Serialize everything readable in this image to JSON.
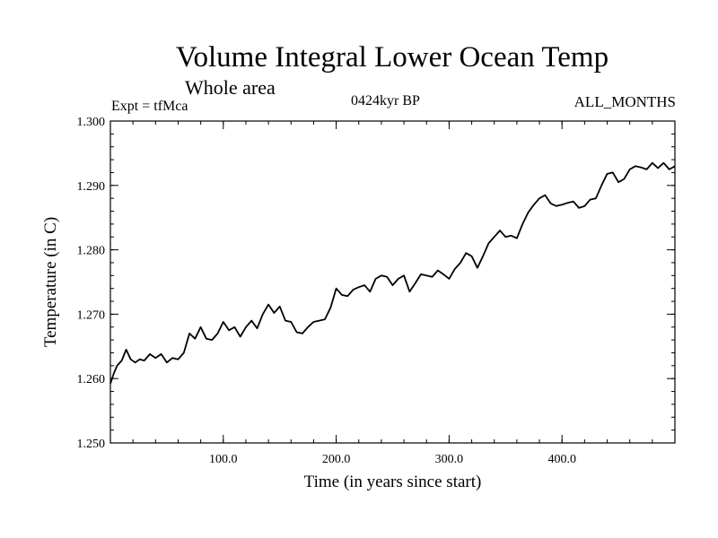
{
  "chart_data": {
    "type": "line",
    "title": "Volume Integral Lower Ocean Temp",
    "subtitle": "Whole area",
    "annotations": {
      "experiment": "Expt = tfMca",
      "period": "0424kyr BP",
      "months": "ALL_MONTHS"
    },
    "xlabel": "Time (in years since start)",
    "ylabel": "Temperature (in C)",
    "xlim": [
      0,
      500
    ],
    "ylim": [
      1.25,
      1.3
    ],
    "xticks": [
      100,
      200,
      300,
      400
    ],
    "xtick_labels": [
      "100.0",
      "200.0",
      "300.0",
      "400.0"
    ],
    "yticks": [
      1.25,
      1.26,
      1.27,
      1.28,
      1.29,
      1.3
    ],
    "ytick_labels": [
      "1.250",
      "1.260",
      "1.270",
      "1.280",
      "1.290",
      "1.300"
    ],
    "grid": false,
    "series": [
      {
        "color": "#000000",
        "x": [
          0,
          3,
          6,
          10,
          14,
          18,
          22,
          26,
          30,
          35,
          40,
          45,
          50,
          55,
          60,
          65,
          70,
          75,
          80,
          85,
          90,
          95,
          100,
          105,
          110,
          115,
          120,
          125,
          130,
          135,
          140,
          145,
          150,
          155,
          160,
          165,
          170,
          175,
          180,
          185,
          190,
          195,
          200,
          205,
          210,
          215,
          220,
          225,
          230,
          235,
          240,
          245,
          250,
          255,
          260,
          265,
          270,
          275,
          280,
          285,
          290,
          295,
          300,
          305,
          310,
          315,
          320,
          325,
          330,
          335,
          340,
          345,
          350,
          355,
          360,
          365,
          370,
          375,
          380,
          385,
          390,
          395,
          400,
          405,
          410,
          415,
          420,
          425,
          430,
          435,
          440,
          445,
          450,
          455,
          460,
          465,
          470,
          475,
          480,
          485,
          490,
          495,
          500
        ],
        "y": [
          1.2592,
          1.2608,
          1.262,
          1.2628,
          1.2645,
          1.263,
          1.2625,
          1.263,
          1.2628,
          1.2638,
          1.2632,
          1.2638,
          1.2625,
          1.2632,
          1.263,
          1.264,
          1.267,
          1.2662,
          1.268,
          1.2662,
          1.266,
          1.267,
          1.2688,
          1.2675,
          1.268,
          1.2665,
          1.268,
          1.269,
          1.2678,
          1.27,
          1.2715,
          1.2702,
          1.2712,
          1.269,
          1.2688,
          1.2672,
          1.267,
          1.268,
          1.2688,
          1.269,
          1.2692,
          1.271,
          1.274,
          1.273,
          1.2728,
          1.2738,
          1.2742,
          1.2745,
          1.2735,
          1.2755,
          1.276,
          1.2758,
          1.2745,
          1.2755,
          1.276,
          1.2735,
          1.2748,
          1.2762,
          1.276,
          1.2758,
          1.2768,
          1.2762,
          1.2755,
          1.277,
          1.278,
          1.2795,
          1.279,
          1.2772,
          1.279,
          1.281,
          1.282,
          1.283,
          1.282,
          1.2822,
          1.2818,
          1.284,
          1.2858,
          1.287,
          1.288,
          1.2885,
          1.2872,
          1.2868,
          1.287,
          1.2873,
          1.2875,
          1.2865,
          1.2868,
          1.2878,
          1.288,
          1.29,
          1.2918,
          1.292,
          1.2905,
          1.291,
          1.2925,
          1.293,
          1.2928,
          1.2925,
          1.2935,
          1.2927,
          1.2935,
          1.2925,
          1.293
        ]
      }
    ]
  }
}
